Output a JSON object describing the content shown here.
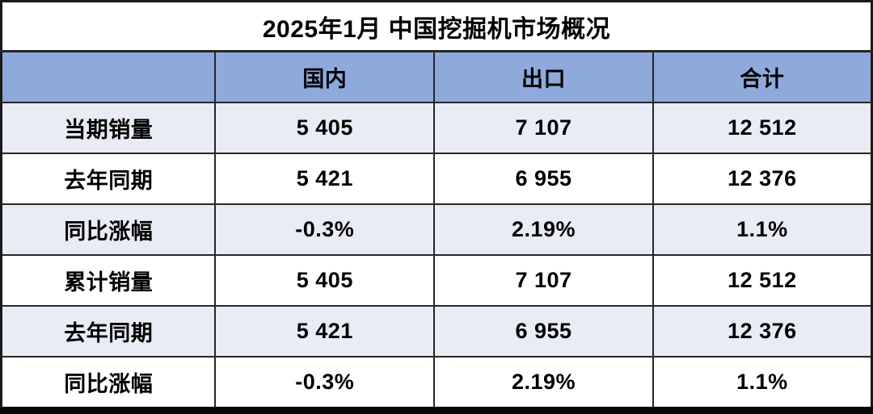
{
  "chart_data": {
    "type": "table",
    "title": "2025年1月 中国挖掘机市场概况",
    "columns": [
      "",
      "国内",
      "出口",
      "合计"
    ],
    "rows": [
      {
        "label": "当期销量",
        "values": [
          "5 405",
          "7 107",
          "12 512"
        ]
      },
      {
        "label": "去年同期",
        "values": [
          "5 421",
          "6 955",
          "12 376"
        ]
      },
      {
        "label": "同比涨幅",
        "values": [
          "-0.3%",
          "2.19%",
          "1.1%"
        ]
      },
      {
        "label": "累计销量",
        "values": [
          "5 405",
          "7 107",
          "12 512"
        ]
      },
      {
        "label": "去年同期",
        "values": [
          "5 421",
          "6 955",
          "12 376"
        ]
      },
      {
        "label": "同比涨幅",
        "values": [
          "-0.3%",
          "2.19%",
          "1.1%"
        ]
      }
    ],
    "layout": {
      "banded_rows": true,
      "header_position": "top",
      "title_position": "top-center"
    }
  },
  "colors": {
    "header_bg": "#8EA9DB",
    "band_row_bg": "#E9EBF5",
    "plain_row_bg": "#FFFFFF",
    "border": "#191919",
    "text": "#000000"
  }
}
